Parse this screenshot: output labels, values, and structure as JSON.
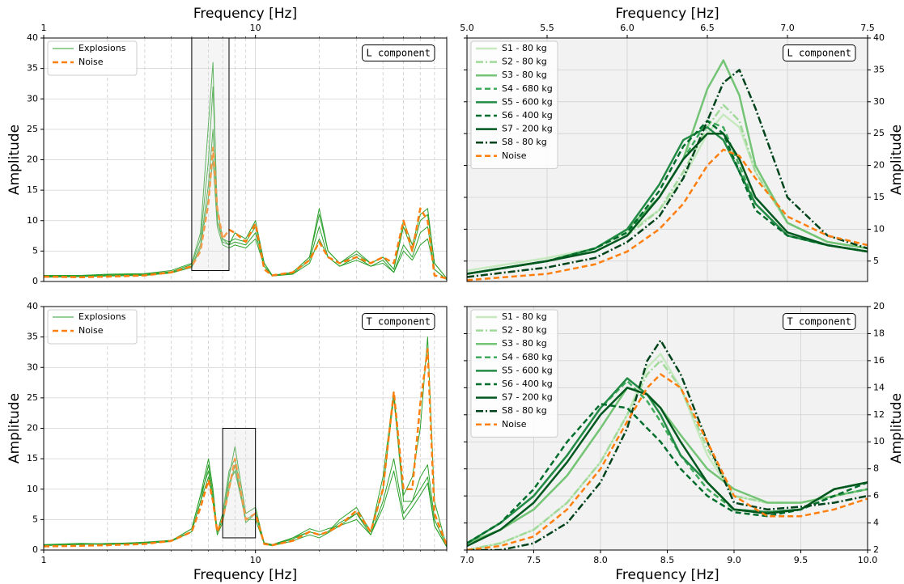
{
  "chart_data": [
    {
      "type": "line",
      "xlabel": "Frequency [Hz]",
      "ylabel": "Amplitude",
      "annotation": "L component",
      "xscale": "log",
      "xlim": [
        1,
        80
      ],
      "xticks": [
        1,
        10
      ],
      "xminor": [
        2,
        3,
        4,
        5,
        6,
        7,
        8,
        9,
        20,
        30,
        40,
        50,
        60,
        70,
        80
      ],
      "ylim": [
        0,
        40
      ],
      "yticks": [
        0,
        5,
        10,
        15,
        20,
        25,
        30,
        35,
        40
      ],
      "xaxis_position": "top",
      "yaxis_position": "left",
      "grid": true,
      "legend": "upper left",
      "x": [
        1,
        1.5,
        2,
        3,
        4,
        5,
        5.5,
        6,
        6.3,
        6.6,
        7,
        7.5,
        8,
        9,
        10,
        11,
        12,
        15,
        18,
        20,
        22,
        25,
        30,
        35,
        40,
        45,
        50,
        55,
        60,
        65,
        70,
        80
      ],
      "series": [
        {
          "name": "Explosions",
          "color": "#2ca02c",
          "width": 1,
          "dash": "solid",
          "values": [
            [
              1.0,
              1.0,
              1.2,
              1.3,
              1.8,
              3,
              8,
              26,
              36,
              10,
              7,
              6,
              8,
              7,
              10,
              3,
              1,
              1.5,
              4,
              12,
              5,
              3,
              5,
              3,
              4,
              2,
              10,
              6,
              11,
              12,
              3,
              0.5
            ],
            [
              0.9,
              1.0,
              1.1,
              1.2,
              1.6,
              2.8,
              7,
              20,
              32,
              12,
              7,
              6.5,
              7,
              6.5,
              9,
              3,
              1,
              1.5,
              4,
              11,
              5,
              3,
              4.5,
              3,
              4,
              2,
              9,
              5,
              10,
              11,
              3,
              0.5
            ],
            [
              0.8,
              0.9,
              1.0,
              1.1,
              1.5,
              2.5,
              6,
              16,
              25,
              10,
              6.5,
              6,
              6.5,
              6,
              8,
              2.5,
              1,
              1.3,
              3.5,
              9,
              4,
              2.5,
              4,
              2.5,
              3.5,
              1.5,
              6,
              4,
              8,
              9,
              2,
              0.3
            ],
            [
              0.7,
              0.8,
              0.9,
              1.0,
              1.4,
              2.3,
              5.5,
              14,
              20,
              9,
              6,
              5.5,
              6,
              5.5,
              7,
              2.5,
              0.9,
              1.2,
              3,
              7,
              4,
              2.5,
              3.5,
              2.5,
              3,
              1.5,
              5,
              3.5,
              6,
              7,
              2,
              0.3
            ]
          ]
        },
        {
          "name": "Noise",
          "color": "#ff7f0e",
          "width": 2.5,
          "dash": "dashed",
          "values": [
            0.8,
            0.7,
            0.8,
            1.0,
            1.5,
            2.5,
            5,
            13,
            22,
            12,
            7,
            8.5,
            8,
            6.5,
            9.5,
            2,
            1,
            1.5,
            3.5,
            6.5,
            4,
            3,
            4,
            3,
            4,
            3,
            10,
            5,
            12,
            10,
            1,
            0.5
          ]
        }
      ]
    },
    {
      "type": "line",
      "xlabel": "Frequency [Hz]",
      "ylabel": "Amplitude",
      "annotation": "L component",
      "xlim": [
        5,
        7.5
      ],
      "xticks": [
        {
          "value": 5,
          "label": "5.0"
        },
        5.5,
        {
          "value": 6,
          "label": "6.0"
        },
        6.5,
        {
          "value": 7,
          "label": "7.0"
        },
        7.5
      ],
      "ylim": [
        1.8,
        40
      ],
      "yticks": [
        5,
        10,
        15,
        20,
        25,
        30,
        35,
        40
      ],
      "xaxis_position": "top",
      "yaxis_position": "right",
      "grid": true,
      "background": "#f2f2f2",
      "legend": "upper left",
      "x": [
        5.0,
        5.5,
        5.8,
        6.0,
        6.2,
        6.35,
        6.5,
        6.6,
        6.7,
        6.8,
        7.0,
        7.25,
        7.5
      ],
      "series": [
        {
          "name": "S1 - 80 kg",
          "color": "#c7e9c0",
          "width": 2.5,
          "dash": "solid",
          "values": [
            3.5,
            5.5,
            7,
            9.5,
            13,
            18,
            25,
            28,
            26,
            19,
            11,
            8,
            7
          ]
        },
        {
          "name": "S2 - 80 kg",
          "color": "#a1d99b",
          "width": 2.5,
          "dash": "dashdot",
          "values": [
            3,
            5,
            6.5,
            9,
            13,
            19,
            26,
            29.5,
            27,
            19,
            11,
            8,
            7
          ]
        },
        {
          "name": "S3 - 80 kg",
          "color": "#74c476",
          "width": 2.5,
          "dash": "solid",
          "values": [
            3,
            5,
            7,
            10,
            15,
            21,
            32,
            36.5,
            31,
            20,
            11,
            8,
            7
          ]
        },
        {
          "name": "S4 - 680 kg",
          "color": "#41ab5d",
          "width": 2.5,
          "dash": "dashed",
          "values": [
            3,
            5,
            7,
            9.5,
            15,
            21,
            27,
            26,
            20,
            14,
            9,
            7.5,
            6.5
          ]
        },
        {
          "name": "S5 - 600 kg",
          "color": "#238b45",
          "width": 2.5,
          "dash": "solid",
          "values": [
            3,
            5,
            7,
            10,
            17,
            24,
            26,
            24,
            19,
            14,
            9,
            7.5,
            6.5
          ]
        },
        {
          "name": "S6 - 400 kg",
          "color": "#006d2c",
          "width": 2.5,
          "dash": "dashed",
          "values": [
            3,
            5,
            7,
            9.5,
            16,
            23,
            27,
            25,
            19,
            13,
            9,
            7.5,
            6.5
          ]
        },
        {
          "name": "S7 - 200 kg",
          "color": "#00581f",
          "width": 2.5,
          "dash": "solid",
          "values": [
            3,
            5,
            6.5,
            9,
            15,
            21,
            25,
            25,
            21,
            15,
            9.5,
            7.5,
            6.5
          ]
        },
        {
          "name": "S8 - 80 kg",
          "color": "#00441b",
          "width": 2.5,
          "dash": "dashdot",
          "values": [
            2.5,
            4,
            5.5,
            8,
            12,
            18,
            27,
            33,
            35,
            29,
            15,
            9,
            7
          ]
        },
        {
          "name": "Noise",
          "color": "#ff7f0e",
          "width": 2.5,
          "dash": "dashed",
          "values": [
            2,
            3,
            4.5,
            6.5,
            10,
            14,
            20,
            22.5,
            21.5,
            18,
            12,
            9,
            7.5
          ]
        }
      ]
    },
    {
      "type": "line",
      "xlabel": "Frequency [Hz]",
      "ylabel": "Amplitude",
      "annotation": "T component",
      "xscale": "log",
      "xlim": [
        1,
        80
      ],
      "xticks": [
        1,
        10
      ],
      "xminor": [
        2,
        3,
        4,
        5,
        6,
        7,
        8,
        9,
        20,
        30,
        40,
        50,
        60,
        70,
        80
      ],
      "ylim": [
        0,
        40
      ],
      "yticks": [
        0,
        5,
        10,
        15,
        20,
        25,
        30,
        35,
        40
      ],
      "xaxis_position": "bottom",
      "yaxis_position": "left",
      "grid": true,
      "legend": "upper left",
      "x": [
        1,
        1.5,
        2,
        3,
        4,
        5,
        5.5,
        6,
        6.3,
        6.6,
        7,
        7.5,
        8,
        9,
        10,
        11,
        12,
        15,
        18,
        20,
        22,
        25,
        30,
        35,
        40,
        45,
        50,
        55,
        60,
        65,
        70,
        80
      ],
      "series": [
        {
          "name": "Explosions",
          "color": "#2ca02c",
          "width": 1,
          "dash": "solid",
          "values": [
            [
              0.8,
              1.0,
              1.0,
              1.2,
              1.5,
              3.5,
              9,
              15,
              10,
              3,
              5,
              12,
              17,
              6,
              7,
              1,
              0.8,
              2,
              3,
              2.5,
              3,
              5,
              7,
              3,
              12,
              26,
              9,
              12,
              20,
              35,
              8,
              0.5
            ],
            [
              0.9,
              1.1,
              1.0,
              1.3,
              1.6,
              3,
              8,
              14,
              9,
              3,
              6,
              13,
              15,
              5,
              6,
              1.2,
              0.9,
              2,
              3.5,
              3,
              3.5,
              4,
              6,
              3,
              10,
              25,
              8,
              8,
              12,
              14,
              5,
              0.6
            ],
            [
              0.8,
              0.9,
              1.1,
              1.2,
              1.5,
              3.5,
              9,
              13,
              8,
              3,
              5,
              11,
              13,
              5,
              5,
              1,
              0.8,
              1.8,
              3,
              2.5,
              3,
              4.5,
              6,
              2.5,
              8,
              15,
              6,
              8,
              10,
              12,
              4,
              0.5
            ],
            [
              0.7,
              1.0,
              0.9,
              1.1,
              1.4,
              3,
              8,
              12,
              8,
              2.5,
              4.5,
              10,
              14,
              4.5,
              6,
              1,
              0.7,
              1.5,
              2.5,
              2,
              2.8,
              4,
              5,
              2.5,
              7,
              13,
              5,
              7,
              9,
              11,
              4,
              0.5
            ]
          ]
        },
        {
          "name": "Noise",
          "color": "#ff7f0e",
          "width": 2.5,
          "dash": "dashed",
          "values": [
            0.6,
            0.7,
            0.8,
            1.0,
            1.5,
            3,
            7,
            11.5,
            8,
            3,
            5,
            10,
            15,
            5,
            6,
            1,
            0.8,
            1.5,
            3,
            2.5,
            3,
            4,
            6.5,
            3,
            10,
            26,
            10,
            10,
            24,
            33,
            6,
            0.8
          ]
        }
      ]
    },
    {
      "type": "line",
      "xlabel": "Frequency [Hz]",
      "ylabel": "Amplitude",
      "annotation": "T component",
      "xlim": [
        7,
        10
      ],
      "xticks": [
        {
          "value": 7,
          "label": "7.0"
        },
        7.5,
        {
          "value": 8,
          "label": "8.0"
        },
        8.5,
        {
          "value": 9,
          "label": "9.0"
        },
        9.5,
        {
          "value": 10,
          "label": "10.0"
        }
      ],
      "ylim": [
        2,
        20
      ],
      "yticks": [
        2,
        4,
        6,
        8,
        10,
        12,
        14,
        16,
        18,
        20
      ],
      "xaxis_position": "bottom",
      "yaxis_position": "right",
      "grid": true,
      "background": "#f2f2f2",
      "legend": "upper left",
      "x": [
        7.0,
        7.25,
        7.5,
        7.75,
        8.0,
        8.2,
        8.35,
        8.45,
        8.6,
        8.8,
        9.0,
        9.25,
        9.5,
        9.75,
        10.0
      ],
      "series": [
        {
          "name": "S1 - 80 kg",
          "color": "#c7e9c0",
          "width": 2.5,
          "dash": "solid",
          "values": [
            2,
            2.5,
            3.5,
            5.5,
            8.5,
            12,
            15.5,
            16.5,
            14,
            9,
            6,
            5.5,
            5.5,
            6,
            6.5
          ]
        },
        {
          "name": "S2 - 80 kg",
          "color": "#a1d99b",
          "width": 2.5,
          "dash": "dashdot",
          "values": [
            2,
            2.5,
            3.5,
            5.5,
            8.5,
            12,
            15,
            16,
            14,
            9.5,
            6,
            5.5,
            5.5,
            6,
            6.5
          ]
        },
        {
          "name": "S3 - 80 kg",
          "color": "#74c476",
          "width": 2.5,
          "dash": "solid",
          "values": [
            2.5,
            3.5,
            5,
            7.5,
            11,
            14,
            13.5,
            12.5,
            10.5,
            8,
            6.5,
            5.5,
            5.5,
            6,
            6.5
          ]
        },
        {
          "name": "S4 - 680 kg",
          "color": "#41ab5d",
          "width": 2.5,
          "dash": "dashed",
          "values": [
            2.5,
            4,
            6,
            9,
            12.5,
            14.5,
            13,
            11.5,
            9,
            6.5,
            5,
            4.8,
            5,
            6,
            6.5
          ]
        },
        {
          "name": "S5 - 600 kg",
          "color": "#238b45",
          "width": 2.5,
          "dash": "solid",
          "values": [
            2.5,
            4,
            6,
            9,
            12.5,
            14.7,
            13.5,
            12,
            9,
            7,
            5,
            4.8,
            5,
            6.5,
            7
          ]
        },
        {
          "name": "S6 - 400 kg",
          "color": "#006d2c",
          "width": 2.5,
          "dash": "dashed",
          "values": [
            2.5,
            4,
            6.5,
            10,
            12.8,
            12.5,
            11,
            10,
            8,
            6,
            4.8,
            4.5,
            5,
            6,
            7
          ]
        },
        {
          "name": "S7 - 200 kg",
          "color": "#00581f",
          "width": 2.5,
          "dash": "solid",
          "values": [
            2.3,
            3.5,
            5.5,
            8.5,
            12,
            14,
            13.5,
            12.5,
            10,
            7,
            5,
            4.7,
            5,
            6.5,
            7
          ]
        },
        {
          "name": "S8 - 80 kg",
          "color": "#00441b",
          "width": 2.5,
          "dash": "dashdot",
          "values": [
            2,
            2,
            2.5,
            4,
            7,
            11,
            16,
            17.5,
            15,
            10,
            5.5,
            5,
            5.2,
            5.5,
            6
          ]
        },
        {
          "name": "Noise",
          "color": "#ff7f0e",
          "width": 2.5,
          "dash": "dashed",
          "values": [
            2,
            2.3,
            3,
            5,
            8,
            11.5,
            14,
            15,
            14,
            10,
            6,
            4.5,
            4.5,
            5,
            5.8
          ]
        }
      ]
    }
  ]
}
